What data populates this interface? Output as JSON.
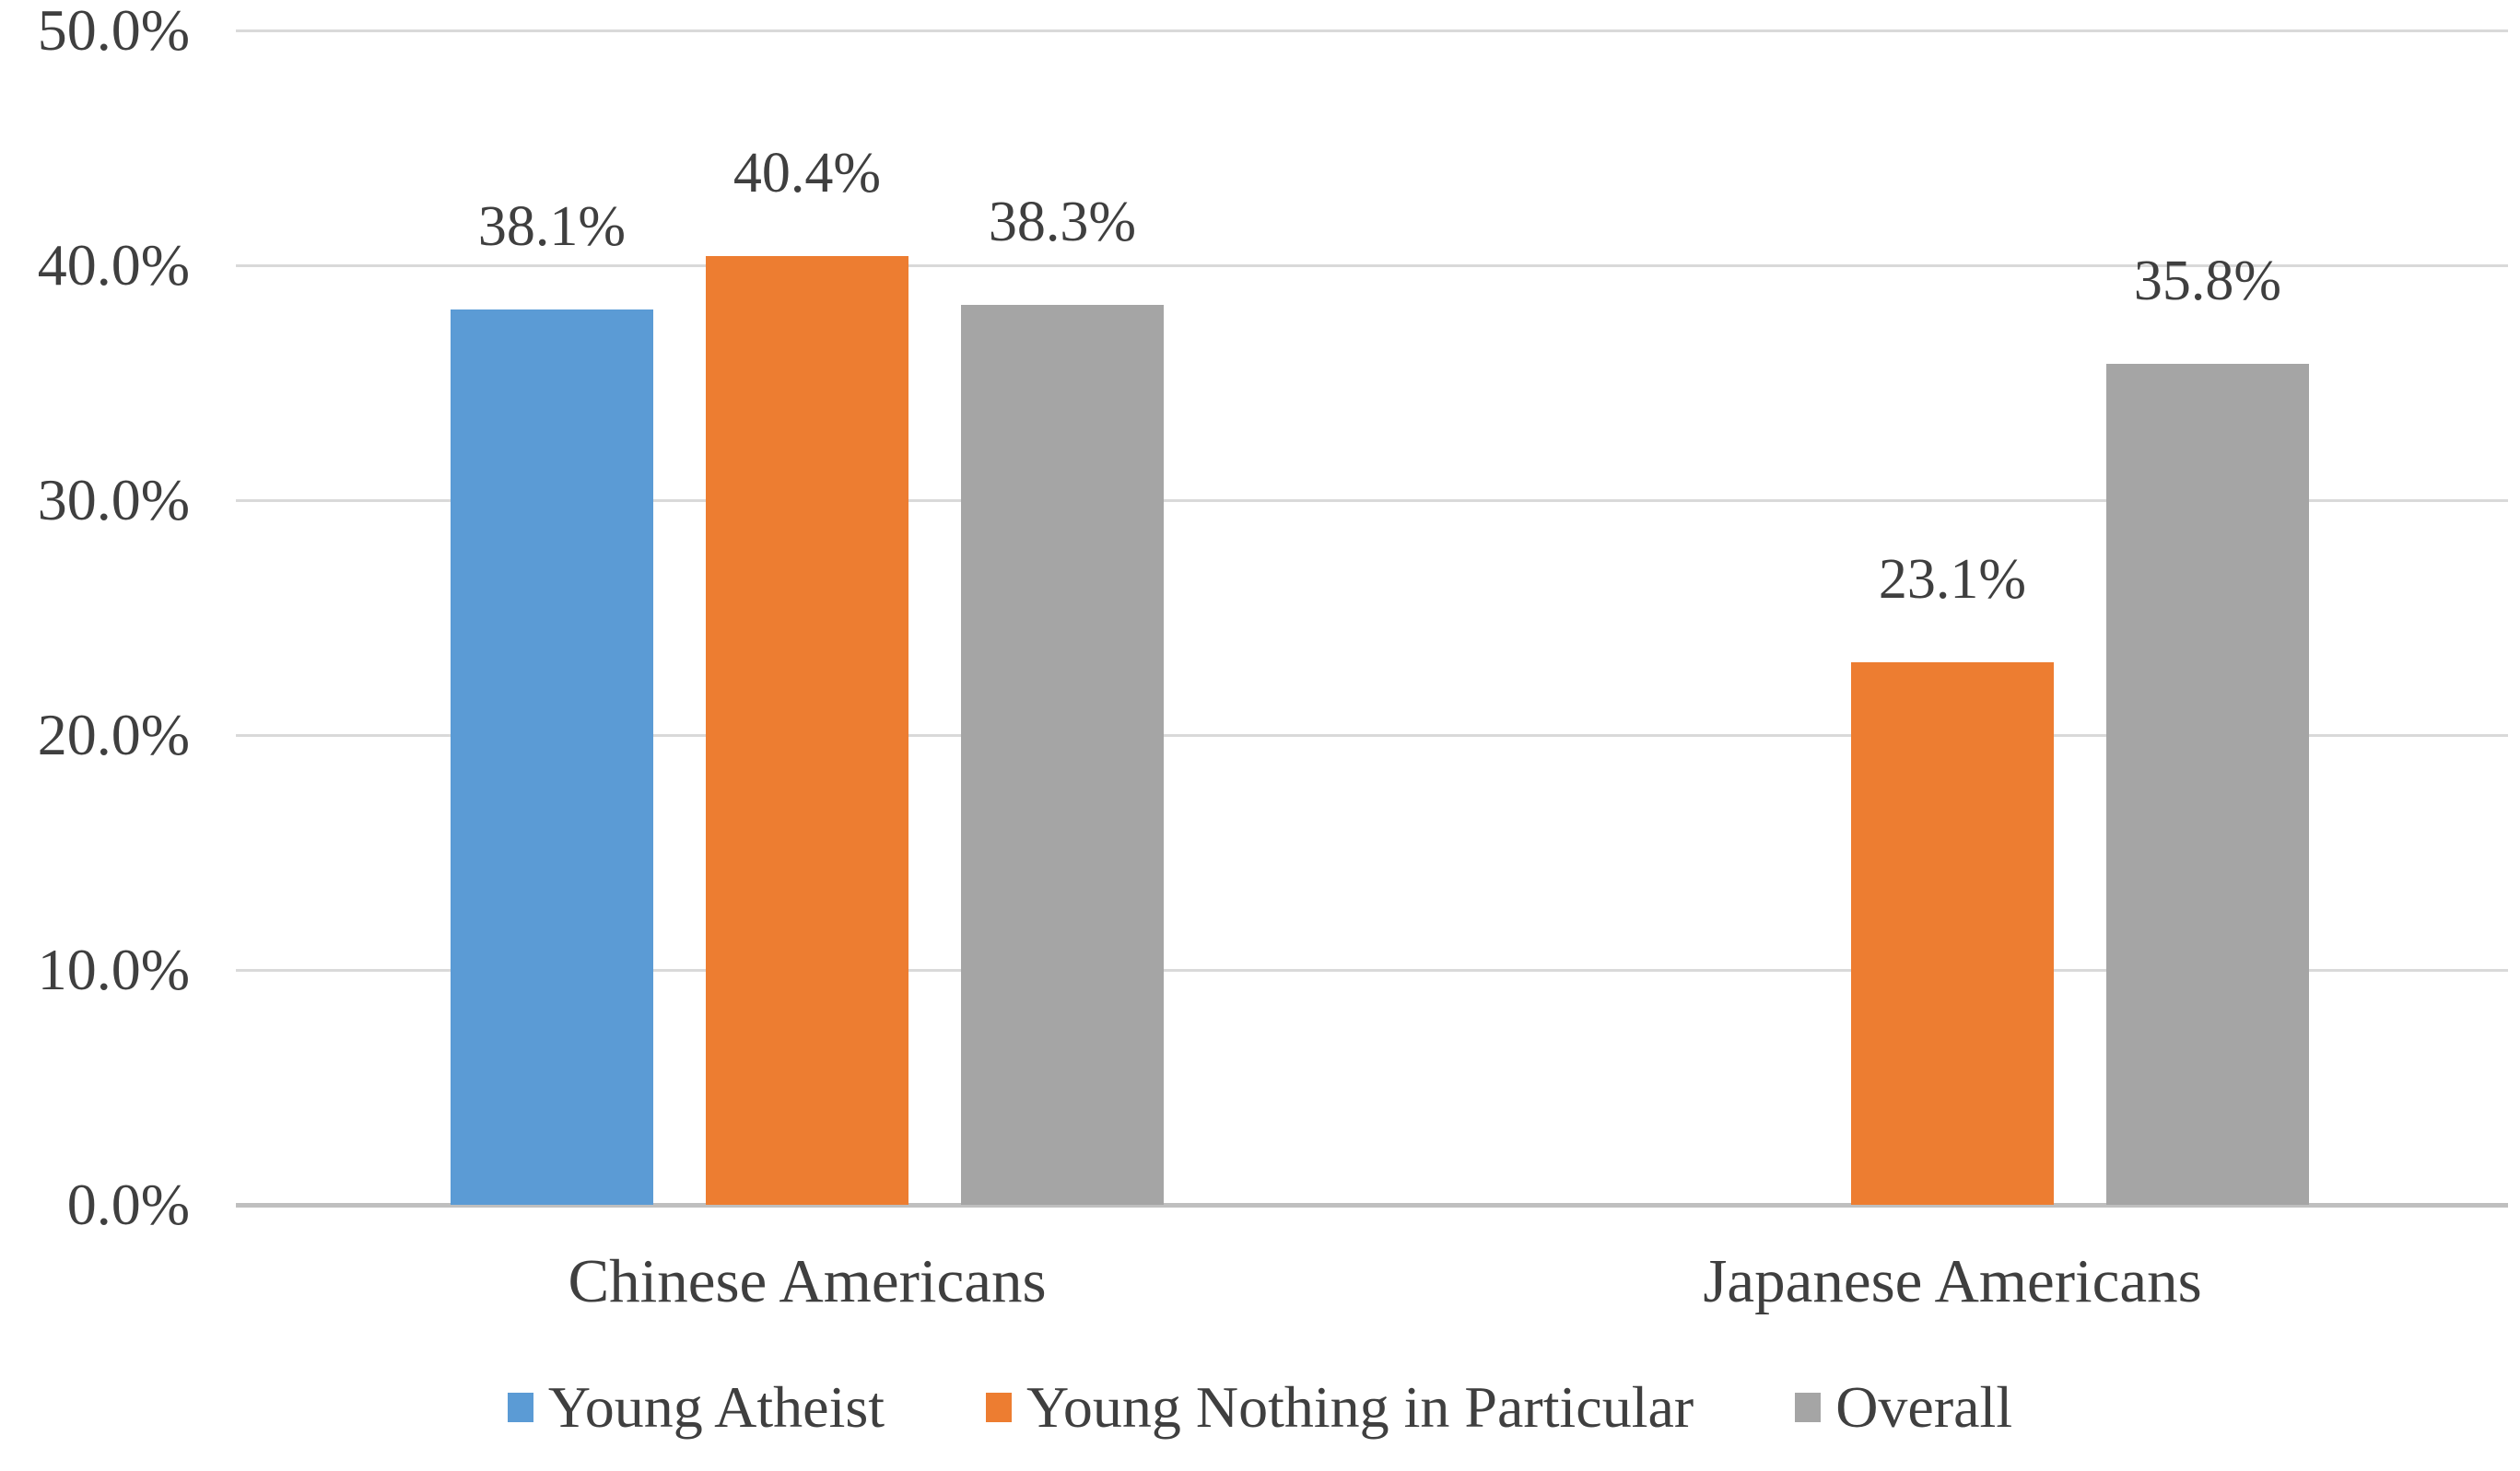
{
  "chart_data": {
    "type": "bar",
    "title": "",
    "xlabel": "",
    "ylabel": "",
    "grid": true,
    "legend_position": "bottom",
    "categories": [
      "Chinese Americans",
      "Japanese Americans"
    ],
    "series": [
      {
        "name": "Young Atheist",
        "color": "#5B9BD5",
        "values": [
          38.1,
          null
        ]
      },
      {
        "name": "Young Nothing in Particular",
        "color": "#ED7D31",
        "values": [
          40.4,
          23.1
        ]
      },
      {
        "name": "Overall",
        "color": "#A5A5A5",
        "values": [
          38.3,
          35.8
        ]
      }
    ],
    "data_labels": [
      [
        "38.1%",
        null
      ],
      [
        "40.4%",
        "23.1%"
      ],
      [
        "38.3%",
        "35.8%"
      ]
    ],
    "y_axis": {
      "min": 0,
      "max": 50,
      "step": 10,
      "tick_labels": [
        "0.0%",
        "10.0%",
        "20.0%",
        "30.0%",
        "40.0%",
        "50.0%"
      ]
    },
    "colors": {
      "grid": "#D9D9D9",
      "axis": "#BFBFBF",
      "text": "#3F3F3F",
      "background": "#FFFFFF"
    }
  }
}
